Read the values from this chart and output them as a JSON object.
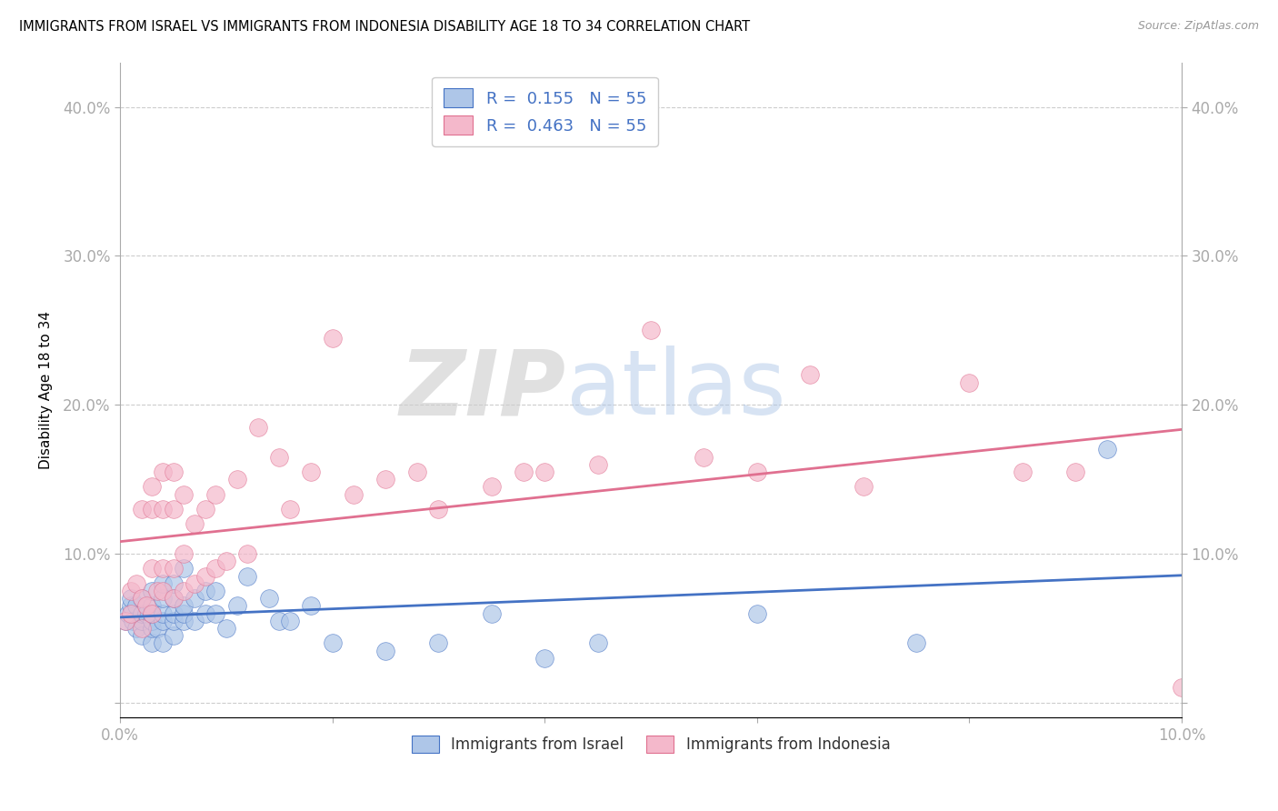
{
  "title": "IMMIGRANTS FROM ISRAEL VS IMMIGRANTS FROM INDONESIA DISABILITY AGE 18 TO 34 CORRELATION CHART",
  "source": "Source: ZipAtlas.com",
  "ylabel": "Disability Age 18 to 34",
  "xlim": [
    0.0,
    0.1
  ],
  "ylim": [
    -0.01,
    0.43
  ],
  "x_tick_positions": [
    0.0,
    0.02,
    0.04,
    0.06,
    0.08,
    0.1
  ],
  "x_tick_labels": [
    "0.0%",
    "",
    "",
    "",
    "",
    "10.0%"
  ],
  "y_tick_positions": [
    0.0,
    0.1,
    0.2,
    0.3,
    0.4
  ],
  "y_tick_labels": [
    "",
    "10.0%",
    "20.0%",
    "30.0%",
    "40.0%"
  ],
  "israel_color": "#aec6e8",
  "indonesia_color": "#f4b8cb",
  "israel_line_color": "#4472c4",
  "indonesia_line_color": "#e07090",
  "legend_israel_label": "R =  0.155   N = 55",
  "legend_indonesia_label": "R =  0.463   N = 55",
  "bottom_legend_israel": "Immigrants from Israel",
  "bottom_legend_indonesia": "Immigrants from Indonesia",
  "watermark_zip": "ZIP",
  "watermark_atlas": "atlas",
  "israel_x": [
    0.0005,
    0.0008,
    0.001,
    0.001,
    0.0012,
    0.0015,
    0.0015,
    0.002,
    0.002,
    0.002,
    0.002,
    0.0025,
    0.003,
    0.003,
    0.003,
    0.003,
    0.003,
    0.003,
    0.0035,
    0.004,
    0.004,
    0.004,
    0.004,
    0.004,
    0.005,
    0.005,
    0.005,
    0.005,
    0.005,
    0.006,
    0.006,
    0.006,
    0.006,
    0.007,
    0.007,
    0.008,
    0.008,
    0.009,
    0.009,
    0.01,
    0.011,
    0.012,
    0.014,
    0.015,
    0.016,
    0.018,
    0.02,
    0.025,
    0.03,
    0.035,
    0.04,
    0.045,
    0.06,
    0.075,
    0.093
  ],
  "israel_y": [
    0.055,
    0.06,
    0.065,
    0.07,
    0.055,
    0.05,
    0.065,
    0.045,
    0.055,
    0.06,
    0.07,
    0.06,
    0.04,
    0.05,
    0.055,
    0.06,
    0.065,
    0.075,
    0.05,
    0.04,
    0.055,
    0.06,
    0.07,
    0.08,
    0.045,
    0.055,
    0.06,
    0.07,
    0.08,
    0.055,
    0.06,
    0.065,
    0.09,
    0.055,
    0.07,
    0.06,
    0.075,
    0.06,
    0.075,
    0.05,
    0.065,
    0.085,
    0.07,
    0.055,
    0.055,
    0.065,
    0.04,
    0.035,
    0.04,
    0.06,
    0.03,
    0.04,
    0.06,
    0.04,
    0.17
  ],
  "indonesia_x": [
    0.0005,
    0.001,
    0.001,
    0.0015,
    0.002,
    0.002,
    0.002,
    0.0025,
    0.003,
    0.003,
    0.003,
    0.003,
    0.0035,
    0.004,
    0.004,
    0.004,
    0.004,
    0.005,
    0.005,
    0.005,
    0.005,
    0.006,
    0.006,
    0.006,
    0.007,
    0.007,
    0.008,
    0.008,
    0.009,
    0.009,
    0.01,
    0.011,
    0.012,
    0.013,
    0.015,
    0.016,
    0.018,
    0.02,
    0.022,
    0.025,
    0.028,
    0.03,
    0.035,
    0.038,
    0.04,
    0.045,
    0.05,
    0.055,
    0.06,
    0.065,
    0.07,
    0.08,
    0.085,
    0.09,
    0.1
  ],
  "indonesia_y": [
    0.055,
    0.06,
    0.075,
    0.08,
    0.05,
    0.07,
    0.13,
    0.065,
    0.06,
    0.09,
    0.13,
    0.145,
    0.075,
    0.075,
    0.09,
    0.13,
    0.155,
    0.07,
    0.09,
    0.13,
    0.155,
    0.075,
    0.1,
    0.14,
    0.08,
    0.12,
    0.085,
    0.13,
    0.09,
    0.14,
    0.095,
    0.15,
    0.1,
    0.185,
    0.165,
    0.13,
    0.155,
    0.245,
    0.14,
    0.15,
    0.155,
    0.13,
    0.145,
    0.155,
    0.155,
    0.16,
    0.25,
    0.165,
    0.155,
    0.22,
    0.145,
    0.215,
    0.155,
    0.155,
    0.01
  ]
}
